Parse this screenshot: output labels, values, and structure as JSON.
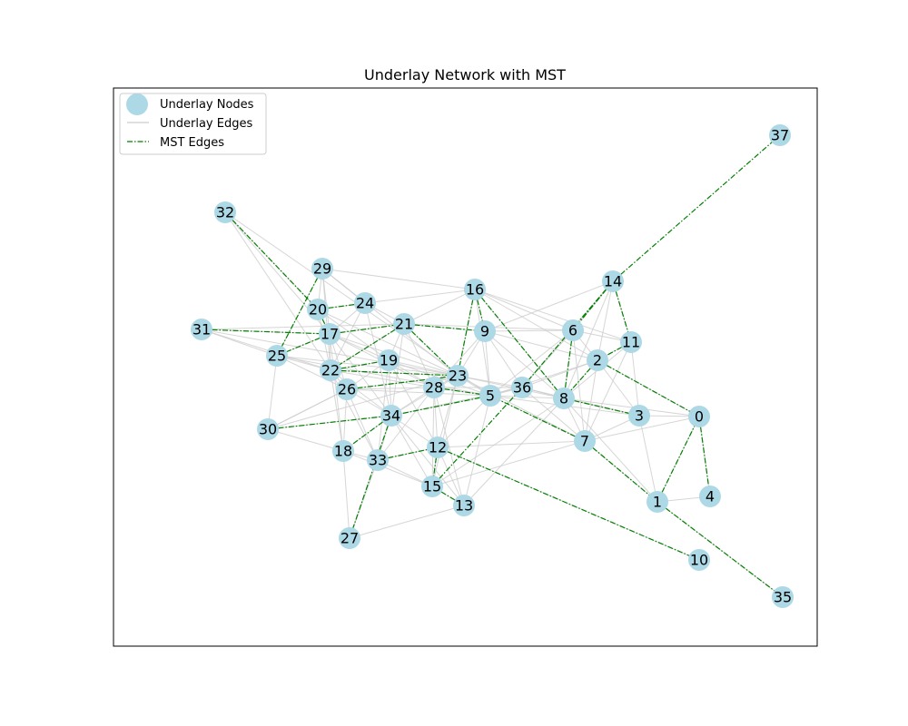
{
  "chart_data": {
    "type": "network",
    "title": "Underlay Network with MST",
    "legend": {
      "placement": "top-left",
      "entries": [
        {
          "label": "Underlay Nodes",
          "kind": "node"
        },
        {
          "label": "Underlay Edges",
          "kind": "underlay"
        },
        {
          "label": "MST Edges",
          "kind": "mst"
        }
      ]
    },
    "colors": {
      "node": "#add8e6",
      "underlay_edge": "#cccccc",
      "mst_edge": "#008000",
      "frame": "#000000"
    },
    "nodes": [
      {
        "id": "0",
        "x": 7.4,
        "y": 4.59
      },
      {
        "id": "1",
        "x": 6.94,
        "y": 5.53
      },
      {
        "id": "2",
        "x": 6.28,
        "y": 3.97
      },
      {
        "id": "3",
        "x": 6.74,
        "y": 4.58
      },
      {
        "id": "4",
        "x": 7.52,
        "y": 5.47
      },
      {
        "id": "5",
        "x": 5.1,
        "y": 4.36
      },
      {
        "id": "6",
        "x": 6.01,
        "y": 3.64
      },
      {
        "id": "7",
        "x": 6.14,
        "y": 4.86
      },
      {
        "id": "8",
        "x": 5.91,
        "y": 4.39
      },
      {
        "id": "9",
        "x": 5.04,
        "y": 3.65
      },
      {
        "id": "10",
        "x": 7.4,
        "y": 6.17
      },
      {
        "id": "11",
        "x": 6.65,
        "y": 3.77
      },
      {
        "id": "12",
        "x": 4.52,
        "y": 4.93
      },
      {
        "id": "13",
        "x": 4.81,
        "y": 5.57
      },
      {
        "id": "14",
        "x": 6.45,
        "y": 3.1
      },
      {
        "id": "15",
        "x": 4.46,
        "y": 5.36
      },
      {
        "id": "16",
        "x": 4.93,
        "y": 3.19
      },
      {
        "id": "17",
        "x": 3.33,
        "y": 3.68
      },
      {
        "id": "18",
        "x": 3.48,
        "y": 4.97
      },
      {
        "id": "19",
        "x": 3.98,
        "y": 3.97
      },
      {
        "id": "20",
        "x": 3.2,
        "y": 3.41
      },
      {
        "id": "21",
        "x": 4.15,
        "y": 3.57
      },
      {
        "id": "22",
        "x": 3.34,
        "y": 4.08
      },
      {
        "id": "23",
        "x": 4.74,
        "y": 4.14
      },
      {
        "id": "24",
        "x": 3.72,
        "y": 3.34
      },
      {
        "id": "25",
        "x": 2.75,
        "y": 3.92
      },
      {
        "id": "26",
        "x": 3.52,
        "y": 4.29
      },
      {
        "id": "27",
        "x": 3.55,
        "y": 5.93
      },
      {
        "id": "28",
        "x": 4.48,
        "y": 4.27
      },
      {
        "id": "29",
        "x": 3.25,
        "y": 2.96
      },
      {
        "id": "30",
        "x": 2.65,
        "y": 4.73
      },
      {
        "id": "31",
        "x": 1.92,
        "y": 3.63
      },
      {
        "id": "32",
        "x": 2.18,
        "y": 2.34
      },
      {
        "id": "33",
        "x": 3.86,
        "y": 5.07
      },
      {
        "id": "34",
        "x": 4.01,
        "y": 4.58
      },
      {
        "id": "35",
        "x": 8.32,
        "y": 6.58
      },
      {
        "id": "36",
        "x": 5.45,
        "y": 4.27
      },
      {
        "id": "37",
        "x": 8.29,
        "y": 1.49
      }
    ],
    "underlay_edges": [
      [
        "32",
        "20"
      ],
      [
        "32",
        "17"
      ],
      [
        "32",
        "22"
      ],
      [
        "32",
        "5"
      ],
      [
        "29",
        "20"
      ],
      [
        "29",
        "17"
      ],
      [
        "29",
        "24"
      ],
      [
        "29",
        "16"
      ],
      [
        "29",
        "23"
      ],
      [
        "29",
        "22"
      ],
      [
        "29",
        "25"
      ],
      [
        "20",
        "24"
      ],
      [
        "20",
        "17"
      ],
      [
        "20",
        "22"
      ],
      [
        "20",
        "19"
      ],
      [
        "20",
        "23"
      ],
      [
        "24",
        "16"
      ],
      [
        "24",
        "17"
      ],
      [
        "24",
        "21"
      ],
      [
        "24",
        "22"
      ],
      [
        "24",
        "34"
      ],
      [
        "31",
        "17"
      ],
      [
        "31",
        "21"
      ],
      [
        "31",
        "25"
      ],
      [
        "31",
        "22"
      ],
      [
        "31",
        "23"
      ],
      [
        "17",
        "21"
      ],
      [
        "17",
        "25"
      ],
      [
        "17",
        "22"
      ],
      [
        "17",
        "19"
      ],
      [
        "17",
        "26"
      ],
      [
        "17",
        "23"
      ],
      [
        "17",
        "34"
      ],
      [
        "17",
        "18"
      ],
      [
        "17",
        "28"
      ],
      [
        "25",
        "22"
      ],
      [
        "25",
        "30"
      ],
      [
        "25",
        "23"
      ],
      [
        "25",
        "5"
      ],
      [
        "25",
        "26"
      ],
      [
        "21",
        "9"
      ],
      [
        "21",
        "19"
      ],
      [
        "21",
        "22"
      ],
      [
        "21",
        "23"
      ],
      [
        "21",
        "16"
      ],
      [
        "21",
        "28"
      ],
      [
        "21",
        "6"
      ],
      [
        "21",
        "34"
      ],
      [
        "16",
        "9"
      ],
      [
        "16",
        "23"
      ],
      [
        "16",
        "6"
      ],
      [
        "16",
        "8"
      ],
      [
        "16",
        "5"
      ],
      [
        "16",
        "2"
      ],
      [
        "16",
        "11"
      ],
      [
        "9",
        "23"
      ],
      [
        "9",
        "5"
      ],
      [
        "9",
        "28"
      ],
      [
        "9",
        "36"
      ],
      [
        "9",
        "6"
      ],
      [
        "9",
        "2"
      ],
      [
        "9",
        "8"
      ],
      [
        "22",
        "19"
      ],
      [
        "22",
        "26"
      ],
      [
        "22",
        "23"
      ],
      [
        "22",
        "28"
      ],
      [
        "22",
        "34"
      ],
      [
        "22",
        "18"
      ],
      [
        "22",
        "33"
      ],
      [
        "19",
        "23"
      ],
      [
        "19",
        "28"
      ],
      [
        "19",
        "26"
      ],
      [
        "19",
        "34"
      ],
      [
        "19",
        "33"
      ],
      [
        "19",
        "12"
      ],
      [
        "19",
        "5"
      ],
      [
        "26",
        "23"
      ],
      [
        "26",
        "28"
      ],
      [
        "26",
        "34"
      ],
      [
        "26",
        "18"
      ],
      [
        "26",
        "33"
      ],
      [
        "26",
        "30"
      ],
      [
        "26",
        "5"
      ],
      [
        "30",
        "34"
      ],
      [
        "30",
        "26"
      ],
      [
        "30",
        "18"
      ],
      [
        "30",
        "23"
      ],
      [
        "28",
        "23"
      ],
      [
        "28",
        "5"
      ],
      [
        "28",
        "34"
      ],
      [
        "28",
        "12"
      ],
      [
        "28",
        "36"
      ],
      [
        "28",
        "33"
      ],
      [
        "28",
        "15"
      ],
      [
        "28",
        "13"
      ],
      [
        "23",
        "5"
      ],
      [
        "23",
        "36"
      ],
      [
        "23",
        "34"
      ],
      [
        "23",
        "8"
      ],
      [
        "23",
        "12"
      ],
      [
        "23",
        "7"
      ],
      [
        "23",
        "15"
      ],
      [
        "34",
        "5"
      ],
      [
        "34",
        "33"
      ],
      [
        "34",
        "12"
      ],
      [
        "34",
        "18"
      ],
      [
        "34",
        "15"
      ],
      [
        "34",
        "13"
      ],
      [
        "34",
        "36"
      ],
      [
        "34",
        "27"
      ],
      [
        "5",
        "36"
      ],
      [
        "5",
        "8"
      ],
      [
        "5",
        "7"
      ],
      [
        "5",
        "12"
      ],
      [
        "5",
        "13"
      ],
      [
        "5",
        "6"
      ],
      [
        "5",
        "2"
      ],
      [
        "5",
        "3"
      ],
      [
        "36",
        "8"
      ],
      [
        "36",
        "6"
      ],
      [
        "36",
        "2"
      ],
      [
        "36",
        "14"
      ],
      [
        "36",
        "7"
      ],
      [
        "36",
        "3"
      ],
      [
        "6",
        "14"
      ],
      [
        "6",
        "11"
      ],
      [
        "6",
        "2"
      ],
      [
        "6",
        "8"
      ],
      [
        "6",
        "7"
      ],
      [
        "14",
        "11"
      ],
      [
        "14",
        "2"
      ],
      [
        "14",
        "8"
      ],
      [
        "14",
        "9"
      ],
      [
        "11",
        "2"
      ],
      [
        "11",
        "3"
      ],
      [
        "11",
        "8"
      ],
      [
        "11",
        "7"
      ],
      [
        "2",
        "8"
      ],
      [
        "2",
        "3"
      ],
      [
        "2",
        "7"
      ],
      [
        "2",
        "0"
      ],
      [
        "8",
        "3"
      ],
      [
        "8",
        "7"
      ],
      [
        "8",
        "1"
      ],
      [
        "8",
        "0"
      ],
      [
        "8",
        "15"
      ],
      [
        "8",
        "13"
      ],
      [
        "3",
        "0"
      ],
      [
        "3",
        "7"
      ],
      [
        "3",
        "1"
      ],
      [
        "0",
        "4"
      ],
      [
        "0",
        "1"
      ],
      [
        "0",
        "7"
      ],
      [
        "1",
        "4"
      ],
      [
        "1",
        "35"
      ],
      [
        "1",
        "7"
      ],
      [
        "7",
        "15"
      ],
      [
        "7",
        "12"
      ],
      [
        "12",
        "15"
      ],
      [
        "12",
        "13"
      ],
      [
        "12",
        "33"
      ],
      [
        "12",
        "10"
      ],
      [
        "33",
        "15"
      ],
      [
        "33",
        "27"
      ],
      [
        "33",
        "18"
      ],
      [
        "18",
        "15"
      ],
      [
        "18",
        "27"
      ],
      [
        "15",
        "13"
      ],
      [
        "27",
        "13"
      ]
    ],
    "mst_edges": [
      [
        "32",
        "20"
      ],
      [
        "29",
        "25"
      ],
      [
        "20",
        "24"
      ],
      [
        "20",
        "17"
      ],
      [
        "31",
        "17"
      ],
      [
        "17",
        "25"
      ],
      [
        "17",
        "21"
      ],
      [
        "21",
        "9"
      ],
      [
        "21",
        "22"
      ],
      [
        "21",
        "23"
      ],
      [
        "22",
        "19"
      ],
      [
        "22",
        "23"
      ],
      [
        "26",
        "23"
      ],
      [
        "16",
        "9"
      ],
      [
        "16",
        "23"
      ],
      [
        "16",
        "8"
      ],
      [
        "14",
        "6"
      ],
      [
        "14",
        "37"
      ],
      [
        "14",
        "11"
      ],
      [
        "14",
        "36"
      ],
      [
        "6",
        "8"
      ],
      [
        "11",
        "2"
      ],
      [
        "2",
        "8"
      ],
      [
        "2",
        "0"
      ],
      [
        "8",
        "3"
      ],
      [
        "7",
        "1"
      ],
      [
        "7",
        "5"
      ],
      [
        "1",
        "0"
      ],
      [
        "0",
        "4"
      ],
      [
        "1",
        "35"
      ],
      [
        "28",
        "5"
      ],
      [
        "5",
        "34"
      ],
      [
        "30",
        "34"
      ],
      [
        "34",
        "18"
      ],
      [
        "34",
        "27"
      ],
      [
        "33",
        "12"
      ],
      [
        "12",
        "15"
      ],
      [
        "15",
        "13"
      ],
      [
        "15",
        "36"
      ],
      [
        "12",
        "10"
      ]
    ]
  }
}
